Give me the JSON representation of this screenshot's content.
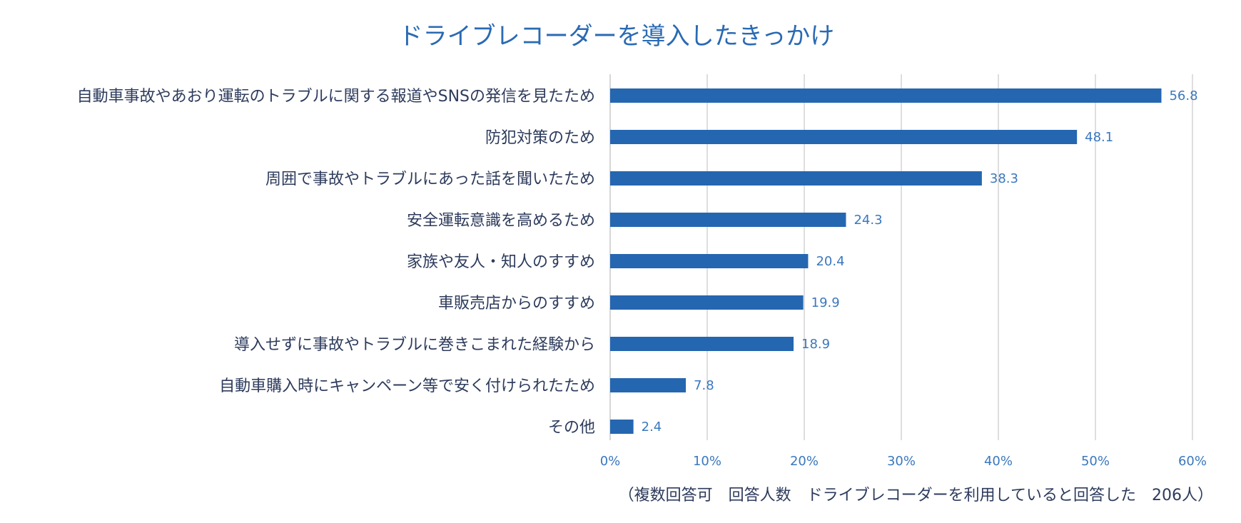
{
  "colors": {
    "bar": "#2566b0",
    "title": "#2a6ab3",
    "value_label": "#3a78be",
    "category_label": "#2d3b5c",
    "grid": "#d4d4d4"
  },
  "chart_data": {
    "type": "bar",
    "orientation": "horizontal",
    "title": "ドライブレコーダーを導入したきっかけ",
    "categories": [
      "自動車事故やあおり運転のトラブルに関する報道やSNSの発信を見たため",
      "防犯対策のため",
      "周囲で事故やトラブルにあった話を聞いたため",
      "安全運転意識を高めるため",
      "家族や友人・知人のすすめ",
      "車販売店からのすすめ",
      "導入せずに事故やトラブルに巻きこまれた経験から",
      "自動車購入時にキャンペーン等で安く付けられたため",
      "その他"
    ],
    "values": [
      56.8,
      48.1,
      38.3,
      24.3,
      20.4,
      19.9,
      18.9,
      7.8,
      2.4
    ],
    "value_labels": [
      "56.8",
      "48.1",
      "38.3",
      "24.3",
      "20.4",
      "19.9",
      "18.9",
      "7.8",
      "2.4"
    ],
    "xlim": [
      0,
      60
    ],
    "xticks": [
      0,
      10,
      20,
      30,
      40,
      50,
      60
    ],
    "xtick_labels": [
      "0%",
      "10%",
      "20%",
      "30%",
      "40%",
      "50%",
      "60%"
    ],
    "xlabel": "",
    "ylabel": "",
    "grid": true,
    "legend": "none",
    "footnote": "（複数回答可　回答人数　ドライブレコーダーを利用していると回答した　206人）"
  }
}
